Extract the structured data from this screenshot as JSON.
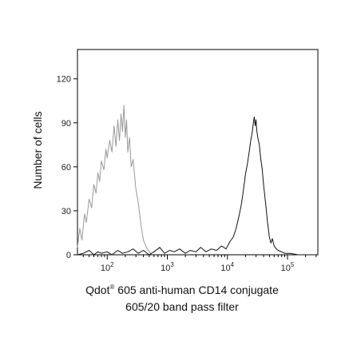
{
  "chart_data": {
    "type": "line",
    "title": "",
    "xlabel": "Qdot® 605 anti-human CD14 conjugate",
    "xlabel_line2": "605/20 band pass filter",
    "ylabel": "Number of cells",
    "xscale": "log",
    "xlim": [
      32,
      320000
    ],
    "ylim": [
      0,
      140
    ],
    "grid": false,
    "legend": "none",
    "y_ticks": [
      0,
      30,
      60,
      90,
      120
    ],
    "y_tick_labels": [
      "0",
      "30",
      "60",
      "90",
      "120"
    ],
    "x_ticks": [
      100,
      1000,
      10000,
      100000
    ],
    "x_tick_labels": [
      {
        "base": "10",
        "exp": "2"
      },
      {
        "base": "10",
        "exp": "3"
      },
      {
        "base": "10",
        "exp": "4"
      },
      {
        "base": "10",
        "exp": "5"
      }
    ],
    "series": [
      {
        "color": "#999999",
        "x": [
          32,
          35,
          38,
          42,
          45,
          50,
          55,
          60,
          65,
          70,
          75,
          80,
          88,
          95,
          100,
          110,
          120,
          130,
          140,
          150,
          160,
          170,
          180,
          190,
          200,
          210,
          220,
          235,
          250,
          270,
          300,
          330,
          360,
          400,
          450,
          500,
          560
        ],
        "y": [
          5,
          18,
          10,
          28,
          22,
          38,
          32,
          48,
          42,
          56,
          50,
          64,
          58,
          72,
          66,
          78,
          70,
          88,
          74,
          92,
          78,
          96,
          84,
          102,
          80,
          92,
          70,
          80,
          60,
          65,
          45,
          35,
          22,
          10,
          5,
          2,
          0
        ]
      },
      {
        "color": "#111111",
        "x": [
          32,
          40,
          50,
          60,
          70,
          80,
          100,
          120,
          150,
          180,
          220,
          270,
          330,
          400,
          500,
          600,
          750,
          900,
          1100,
          1300,
          1600,
          2000,
          2400,
          3000,
          3600,
          4400,
          5400,
          6600,
          8000,
          9500,
          11000,
          12500,
          14000,
          15500,
          17000,
          18500,
          20000,
          21500,
          23000,
          24500,
          26000,
          27000,
          28000,
          29000,
          30000,
          31000,
          32000,
          34000,
          36000,
          38000,
          40000,
          42000,
          44000,
          46000,
          48000,
          50000,
          53000,
          56000,
          60000,
          65000,
          70000,
          80000,
          90000,
          110000,
          150000,
          300000
        ],
        "y": [
          0,
          1,
          3,
          0,
          2,
          1,
          2,
          0,
          3,
          1,
          2,
          4,
          1,
          3,
          0,
          2,
          5,
          1,
          3,
          2,
          4,
          1,
          3,
          2,
          5,
          2,
          4,
          3,
          6,
          4,
          9,
          12,
          18,
          26,
          34,
          44,
          55,
          62,
          70,
          78,
          84,
          90,
          94,
          88,
          92,
          84,
          80,
          75,
          65,
          58,
          48,
          40,
          32,
          24,
          18,
          12,
          8,
          11,
          6,
          4,
          3,
          2,
          1,
          1,
          0,
          0
        ]
      }
    ]
  }
}
